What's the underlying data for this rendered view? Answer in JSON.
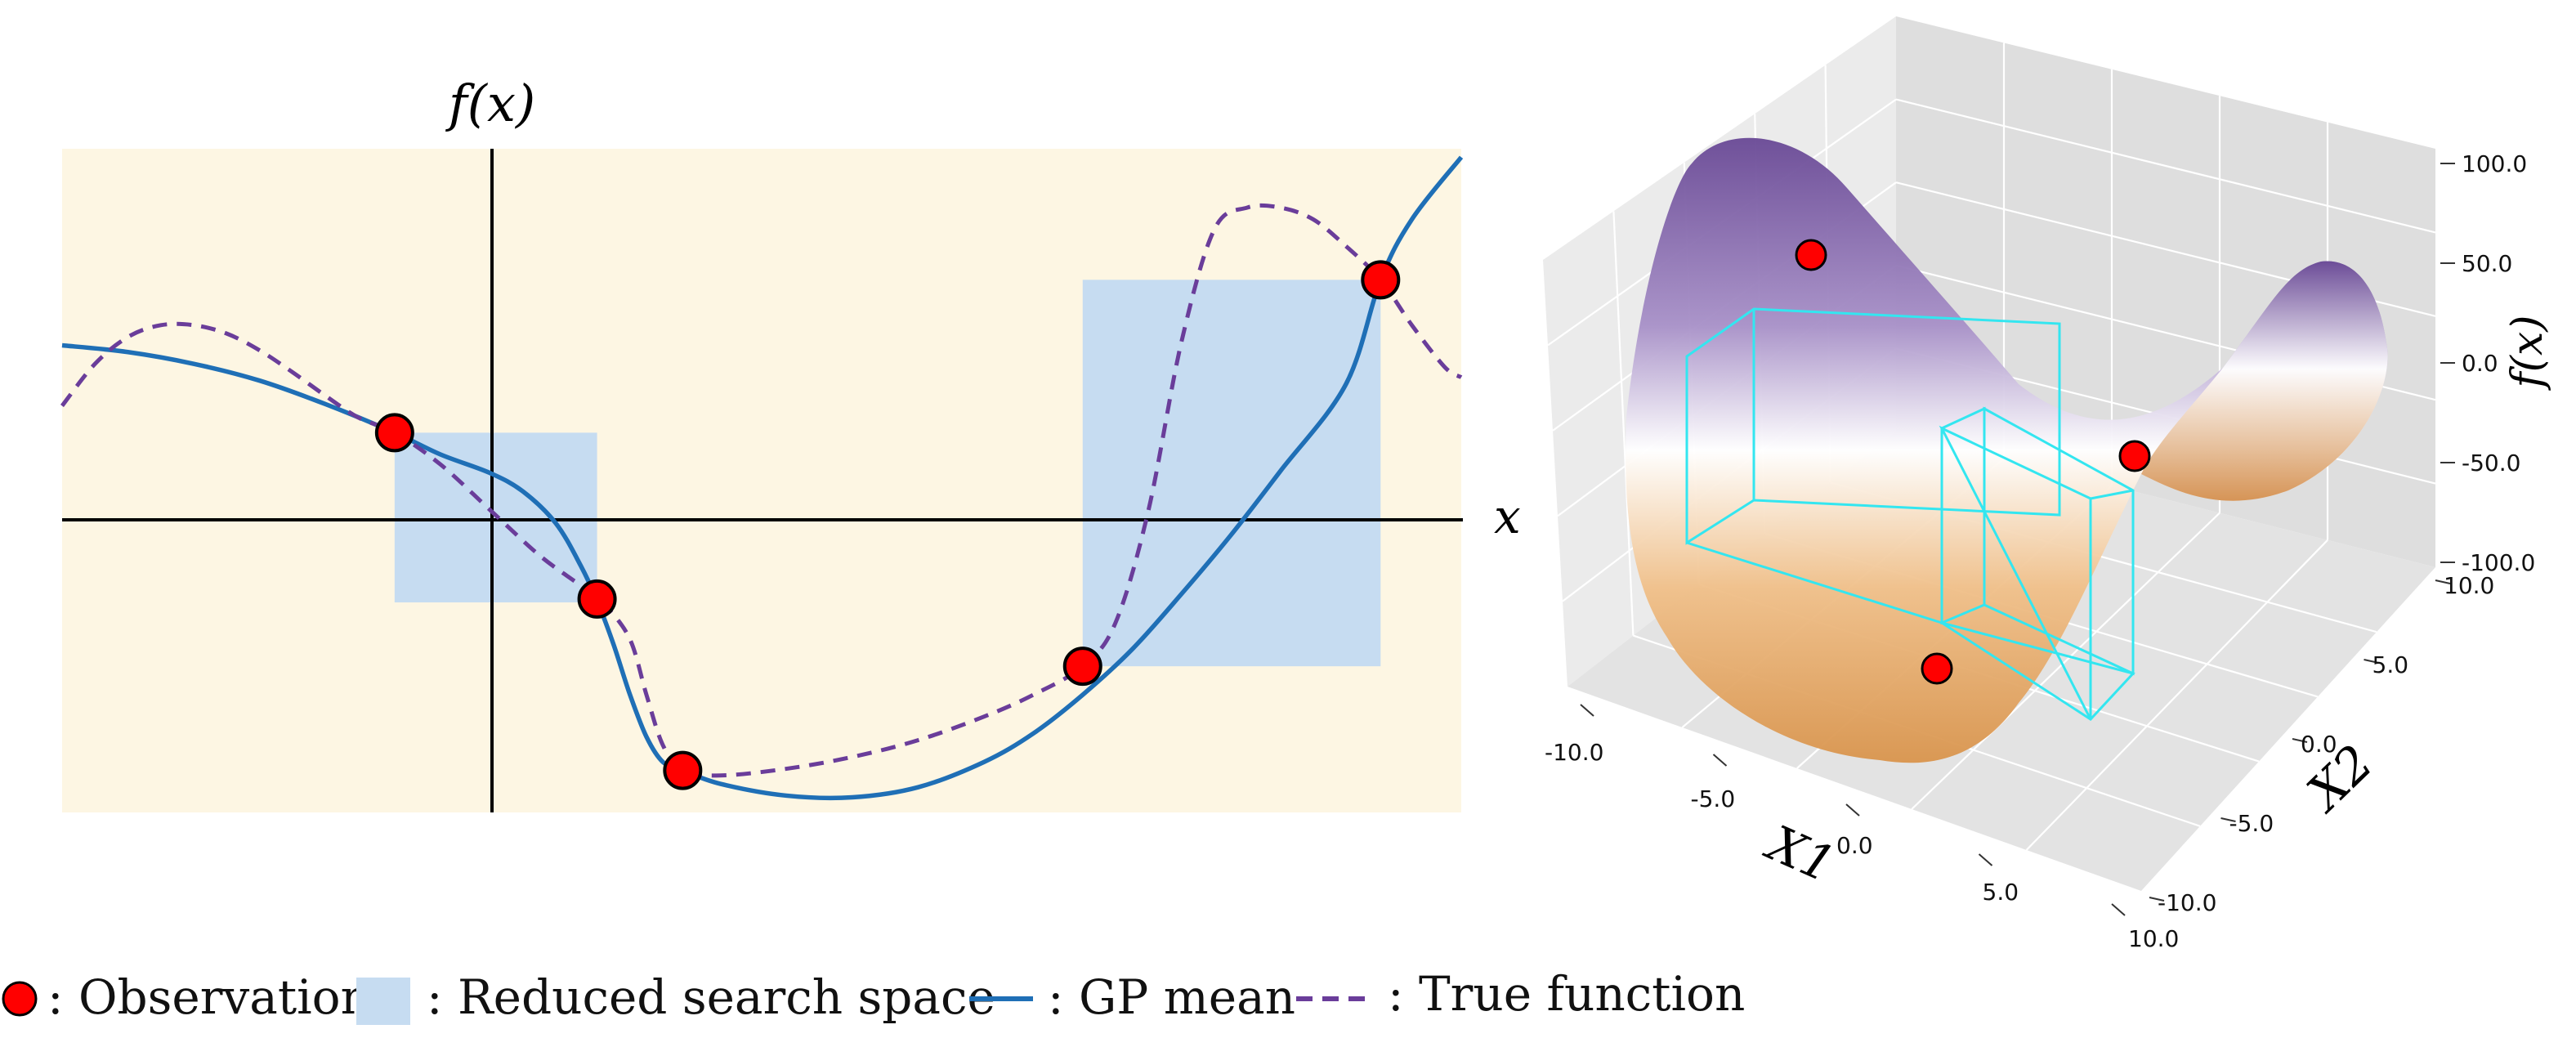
{
  "chart_data": [
    {
      "type": "line",
      "axis_label_x": "x",
      "axis_label_y": "f(x)",
      "grid": false,
      "background_color": "#fdf6e3",
      "x_range": [
        -2.6,
        5.9
      ],
      "y_range": [
        -1.75,
        2.2
      ],
      "series": [
        {
          "name": "GP mean",
          "color": "#1f6fb6",
          "style": "solid",
          "x": [
            -2.6,
            -2.2,
            -1.8,
            -1.4,
            -1.0,
            -0.58,
            -0.3,
            0.0,
            0.2,
            0.4,
            0.55,
            0.65,
            0.75,
            0.85,
            0.95,
            1.05,
            1.17,
            1.4,
            1.8,
            2.2,
            2.6,
            3.0,
            3.3,
            3.6,
            3.9,
            4.2,
            4.5,
            4.8,
            5.2,
            5.41,
            5.6,
            5.9
          ],
          "y": [
            1.03,
            0.99,
            0.92,
            0.82,
            0.68,
            0.51,
            0.38,
            0.27,
            0.16,
            -0.03,
            -0.28,
            -0.49,
            -0.75,
            -1.05,
            -1.3,
            -1.45,
            -1.5,
            -1.58,
            -1.65,
            -1.66,
            -1.6,
            -1.45,
            -1.28,
            -1.05,
            -0.78,
            -0.45,
            -0.1,
            0.28,
            0.8,
            1.42,
            1.78,
            2.15
          ]
        },
        {
          "name": "True function",
          "color": "#6a3d9a",
          "style": "dashed",
          "x": [
            -2.6,
            -2.4,
            -2.2,
            -2.0,
            -1.8,
            -1.6,
            -1.4,
            -1.2,
            -1.0,
            -0.8,
            -0.58,
            -0.3,
            0.0,
            0.3,
            0.55,
            0.7,
            0.85,
            0.95,
            1.05,
            1.17,
            1.4,
            1.8,
            2.2,
            2.6,
            3.0,
            3.3,
            3.6,
            3.8,
            4.0,
            4.2,
            4.4,
            4.6,
            4.8,
            5.0,
            5.2,
            5.41,
            5.6,
            5.8,
            5.9
          ],
          "y": [
            0.67,
            0.92,
            1.08,
            1.15,
            1.15,
            1.1,
            1.0,
            0.87,
            0.73,
            0.6,
            0.51,
            0.32,
            0.05,
            -0.22,
            -0.4,
            -0.52,
            -0.72,
            -1.05,
            -1.35,
            -1.5,
            -1.53,
            -1.49,
            -1.42,
            -1.32,
            -1.18,
            -1.05,
            -0.88,
            -0.62,
            0.05,
            1.05,
            1.72,
            1.85,
            1.85,
            1.78,
            1.62,
            1.42,
            1.15,
            0.9,
            0.84
          ]
        }
      ],
      "observations": {
        "x": [
          -0.58,
          0.65,
          1.17,
          3.6,
          5.41
        ],
        "y": [
          0.51,
          -0.48,
          -1.5,
          -0.88,
          1.42
        ]
      },
      "reduced_search_space": [
        {
          "x_range": [
            -0.58,
            0.65
          ],
          "y_range": [
            -0.5,
            0.51
          ]
        },
        {
          "x_range": [
            3.6,
            5.41
          ],
          "y_range": [
            -0.88,
            1.42
          ]
        }
      ]
    },
    {
      "type": "surface",
      "surface": "x1^2 - x2^2",
      "colormap": [
        "#e8a860",
        "#ffffff",
        "#6a4a96"
      ],
      "xlabel": "X1",
      "ylabel": "X2",
      "zlabel": "f(x)",
      "x_ticks": [
        "-10.0",
        "-5.0",
        "0.0",
        "5.0",
        "10.0"
      ],
      "y_ticks": [
        "-10.0",
        "-5.0",
        "0.0",
        "5.0",
        "10.0"
      ],
      "z_ticks": [
        "100.0",
        "50.0",
        "0.0",
        "-50.0",
        "-100.0"
      ],
      "grid": true,
      "box_color": "#33e6f0"
    }
  ],
  "legend": [
    {
      "marker": "observation",
      "label": ": Observation"
    },
    {
      "marker": "reduced-box",
      "label": ": Reduced search space"
    },
    {
      "marker": "solid-line",
      "label": ": GP mean"
    },
    {
      "marker": "dashed-line",
      "label": ": True function"
    }
  ],
  "colors": {
    "observation_fill": "#ff0000",
    "reduced_box": "#c6dcf1",
    "gp_mean": "#1f6fb6",
    "true_function": "#6a3d9a",
    "panel_background": "#fdf6e3"
  }
}
